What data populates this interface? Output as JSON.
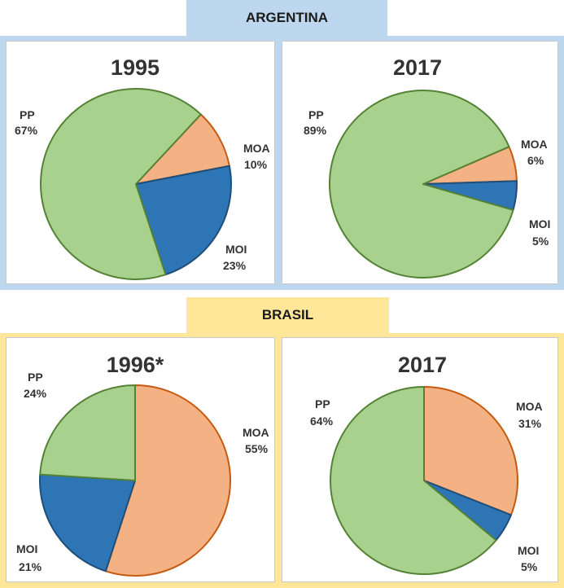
{
  "sections": [
    {
      "title": "ARGENTINA",
      "banner_color": "#bdd7ee",
      "band_color": "#bdd7ee"
    },
    {
      "title": "BRASIL",
      "banner_color": "#ffe699",
      "band_color": "#ffe699"
    }
  ],
  "colors": {
    "PP": {
      "fill": "#a9d18e",
      "stroke": "#548235"
    },
    "MOA": {
      "fill": "#f4b183",
      "stroke": "#c55a11"
    },
    "MOI": {
      "fill": "#2e75b6",
      "stroke": "#1f4e79"
    }
  },
  "chart_data": [
    {
      "type": "pie",
      "title": "1995",
      "slices": [
        {
          "label": "MOA",
          "value": 10,
          "text": "10%"
        },
        {
          "label": "MOI",
          "value": 23,
          "text": "23%"
        },
        {
          "label": "PP",
          "value": 67,
          "text": "67%"
        }
      ]
    },
    {
      "type": "pie",
      "title": "2017",
      "slices": [
        {
          "label": "MOA",
          "value": 6,
          "text": "6%"
        },
        {
          "label": "MOI",
          "value": 5,
          "text": "5%"
        },
        {
          "label": "PP",
          "value": 89,
          "text": "89%"
        }
      ]
    },
    {
      "type": "pie",
      "title": "1996*",
      "slices": [
        {
          "label": "MOA",
          "value": 55,
          "text": "55%"
        },
        {
          "label": "MOI",
          "value": 21,
          "text": "21%"
        },
        {
          "label": "PP",
          "value": 24,
          "text": "24%"
        }
      ]
    },
    {
      "type": "pie",
      "title": "2017",
      "slices": [
        {
          "label": "MOA",
          "value": 31,
          "text": "31%"
        },
        {
          "label": "MOI",
          "value": 5,
          "text": "5%"
        },
        {
          "label": "PP",
          "value": 64,
          "text": "64%"
        }
      ]
    }
  ]
}
